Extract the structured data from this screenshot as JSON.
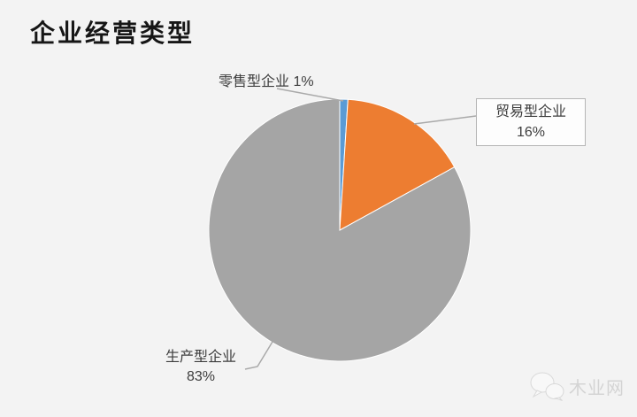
{
  "page": {
    "background": "#f3f3f3"
  },
  "header": {
    "title": "企业经营类型"
  },
  "callouts": {
    "retail": {
      "text": "零售型企业 1%"
    },
    "trade": {
      "line1": "贸易型企业",
      "line2": "16%"
    },
    "production": {
      "line1": "生产型企业",
      "line2": "83%"
    }
  },
  "watermark": {
    "icon": "wechat-icon",
    "text": "木业网"
  },
  "chart_data": {
    "type": "pie",
    "title": "企业经营类型",
    "categories": [
      "零售型企业",
      "贸易型企业",
      "生产型企业"
    ],
    "values": [
      1,
      16,
      83
    ],
    "unit": "%",
    "series_colors": [
      "#5b9bd5",
      "#ed7d31",
      "#a5a5a5"
    ],
    "start_angle_deg": 0,
    "direction": "clockwise",
    "legend_position": "none",
    "data_labels": [
      "零售型企业 1%",
      "贸易型企业 16%",
      "生产型企业 83%"
    ]
  }
}
